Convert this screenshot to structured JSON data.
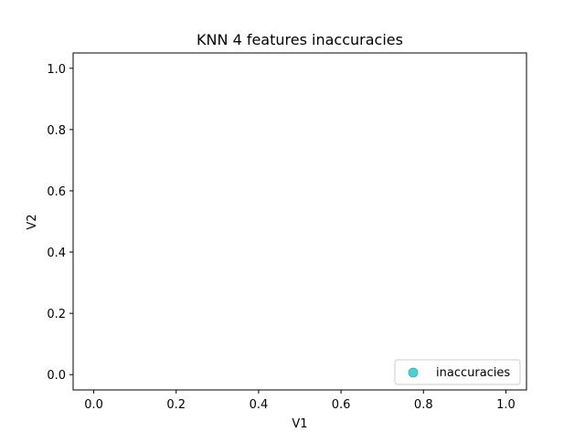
{
  "chart_data": {
    "type": "scatter",
    "title": "KNN 4 features inaccuracies",
    "xlabel": "V1",
    "ylabel": "V2",
    "xlim": [
      -0.05,
      1.05
    ],
    "ylim": [
      -0.05,
      1.05
    ],
    "xticks": [
      0.0,
      0.2,
      0.4,
      0.6,
      0.8,
      1.0
    ],
    "yticks": [
      0.0,
      0.2,
      0.4,
      0.6,
      0.8,
      1.0
    ],
    "xtick_labels": [
      "0.0",
      "0.2",
      "0.4",
      "0.6",
      "0.8",
      "1.0"
    ],
    "ytick_labels": [
      "0.0",
      "0.2",
      "0.4",
      "0.6",
      "0.8",
      "1.0"
    ],
    "grid": false,
    "legend_position": "lower right",
    "series": [
      {
        "name": "inaccuracies",
        "color": "#4fcfcf",
        "points": []
      }
    ]
  }
}
